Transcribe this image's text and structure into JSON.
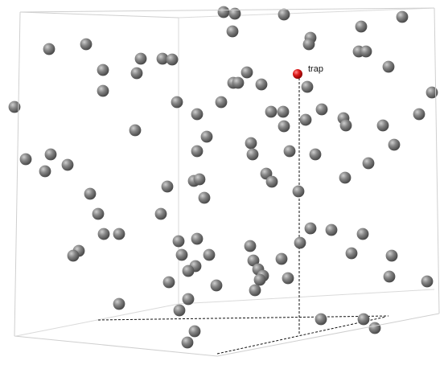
{
  "diagram": {
    "marker_label": "trap",
    "particle_count": 106,
    "colors": {
      "background": "#ffffff",
      "box_edge": "#d6d6d6",
      "particle": "#6c6c6c",
      "particle_highlight": "#c9c9c9",
      "trap": "#cc1111",
      "trap_highlight": "#ff6b6b",
      "guide_line": "#111111"
    }
  }
}
